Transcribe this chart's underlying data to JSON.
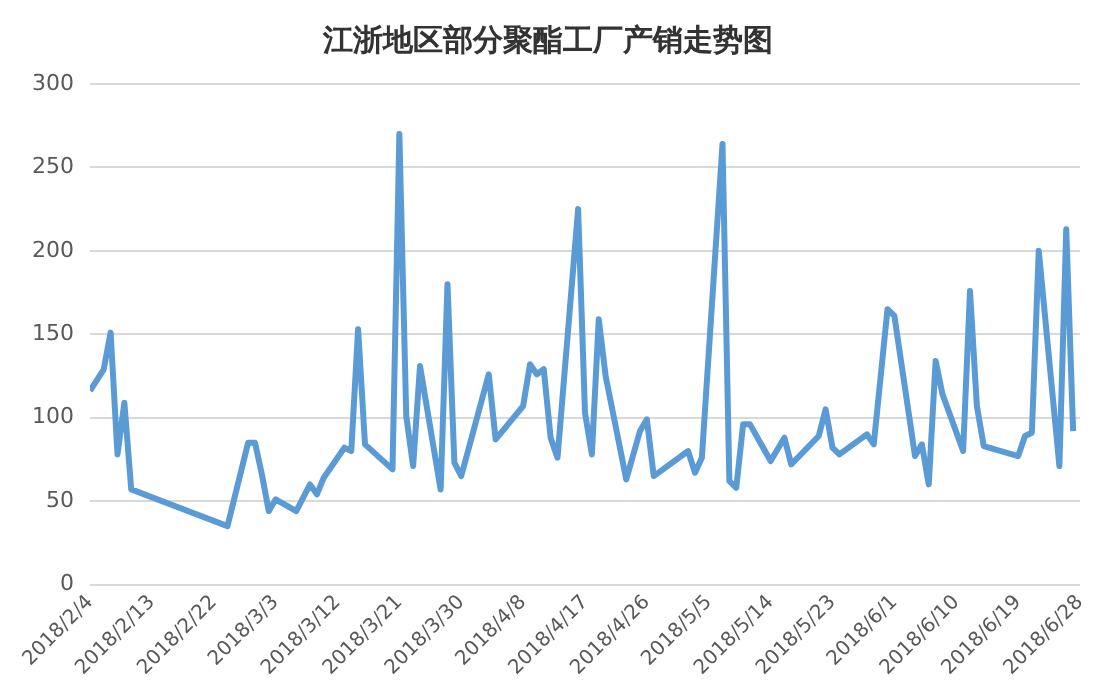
{
  "chart_data": {
    "type": "line",
    "title": "江浙地区部分聚酯工厂产销走势图",
    "x": [
      "2018-02-04",
      "2018-02-06",
      "2018-02-07",
      "2018-02-08",
      "2018-02-09",
      "2018-02-10",
      "2018-02-24",
      "2018-02-27",
      "2018-02-28",
      "2018-03-01",
      "2018-03-02",
      "2018-03-03",
      "2018-03-06",
      "2018-03-08",
      "2018-03-09",
      "2018-03-10",
      "2018-03-13",
      "2018-03-14",
      "2018-03-15",
      "2018-03-16",
      "2018-03-20",
      "2018-03-21",
      "2018-03-22",
      "2018-03-23",
      "2018-03-24",
      "2018-03-27",
      "2018-03-28",
      "2018-03-29",
      "2018-03-30",
      "2018-04-03",
      "2018-04-04",
      "2018-04-08",
      "2018-04-09",
      "2018-04-10",
      "2018-04-11",
      "2018-04-12",
      "2018-04-13",
      "2018-04-16",
      "2018-04-17",
      "2018-04-18",
      "2018-04-19",
      "2018-04-20",
      "2018-04-23",
      "2018-04-25",
      "2018-04-26",
      "2018-04-27",
      "2018-05-02",
      "2018-05-03",
      "2018-05-04",
      "2018-05-07",
      "2018-05-08",
      "2018-05-09",
      "2018-05-10",
      "2018-05-11",
      "2018-05-14",
      "2018-05-16",
      "2018-05-17",
      "2018-05-21",
      "2018-05-22",
      "2018-05-23",
      "2018-05-24",
      "2018-05-28",
      "2018-05-29",
      "2018-05-31",
      "2018-06-01",
      "2018-06-04",
      "2018-06-05",
      "2018-06-06",
      "2018-06-07",
      "2018-06-08",
      "2018-06-11",
      "2018-06-12",
      "2018-06-13",
      "2018-06-14",
      "2018-06-19",
      "2018-06-20",
      "2018-06-21",
      "2018-06-22",
      "2018-06-25",
      "2018-06-26",
      "2018-06-27"
    ],
    "series": [
      {
        "color": "#5b9bd5",
        "values": [
          116,
          129,
          151,
          78,
          109,
          57,
          35,
          85,
          85,
          66,
          44,
          51,
          44,
          60,
          54,
          64,
          82,
          80,
          153,
          84,
          69,
          270,
          101,
          71,
          131,
          57,
          180,
          73,
          65,
          126,
          87,
          107,
          132,
          126,
          129,
          88,
          76,
          225,
          103,
          78,
          159,
          125,
          63,
          92,
          99,
          65,
          80,
          67,
          76,
          264,
          62,
          58,
          96,
          96,
          74,
          88,
          72,
          89,
          105,
          82,
          78,
          90,
          84,
          165,
          161,
          77,
          84,
          60,
          134,
          114,
          80,
          176,
          107,
          83,
          77,
          89,
          91,
          200,
          71,
          213,
          92
        ]
      }
    ],
    "xlim": [
      "2018-02-04",
      "2018-06-28"
    ],
    "xticks": [
      {
        "value": "2018-02-04",
        "label": "2018/2/4"
      },
      {
        "value": "2018-02-13",
        "label": "2018/2/13"
      },
      {
        "value": "2018-02-22",
        "label": "2018/2/22"
      },
      {
        "value": "2018-03-03",
        "label": "2018/3/3"
      },
      {
        "value": "2018-03-12",
        "label": "2018/3/12"
      },
      {
        "value": "2018-03-21",
        "label": "2018/3/21"
      },
      {
        "value": "2018-03-30",
        "label": "2018/3/30"
      },
      {
        "value": "2018-04-08",
        "label": "2018/4/8"
      },
      {
        "value": "2018-04-17",
        "label": "2018/4/17"
      },
      {
        "value": "2018-04-26",
        "label": "2018/4/26"
      },
      {
        "value": "2018-05-05",
        "label": "2018/5/5"
      },
      {
        "value": "2018-05-14",
        "label": "2018/5/14"
      },
      {
        "value": "2018-05-23",
        "label": "2018/5/23"
      },
      {
        "value": "2018-06-01",
        "label": "2018/6/1"
      },
      {
        "value": "2018-06-10",
        "label": "2018/6/10"
      },
      {
        "value": "2018-06-19",
        "label": "2018/6/19"
      },
      {
        "value": "2018-06-28",
        "label": "2018/6/28"
      }
    ],
    "ylim": [
      0,
      300
    ],
    "yticks": [
      0,
      50,
      100,
      150,
      200,
      250,
      300
    ],
    "grid": "y",
    "legend": false,
    "marker": "none",
    "line_style": "solid"
  }
}
